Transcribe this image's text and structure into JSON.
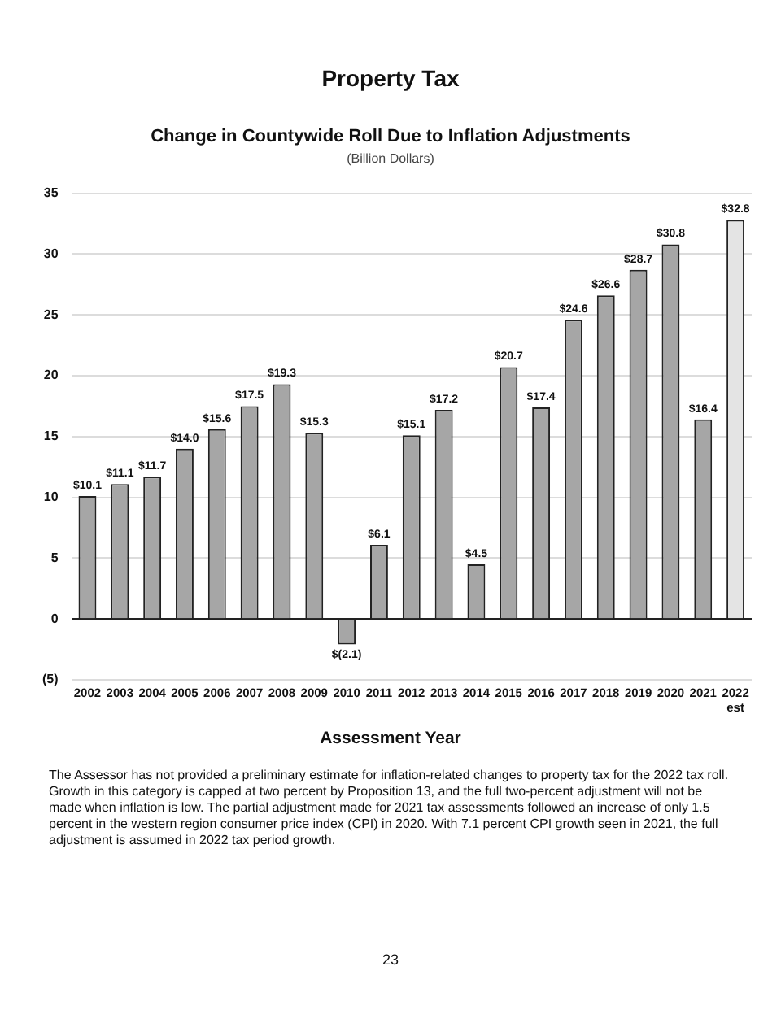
{
  "chart_data": {
    "type": "bar",
    "title": "Property Tax",
    "subtitle": "Change in Countywide Roll Due to Inflation Adjustments",
    "ylabel": "(Billion Dollars)",
    "xlabel": "Assessment Year",
    "categories": [
      "2002",
      "2003",
      "2004",
      "2005",
      "2006",
      "2007",
      "2008",
      "2009",
      "2010",
      "2011",
      "2012",
      "2013",
      "2014",
      "2015",
      "2016",
      "2017",
      "2018",
      "2019",
      "2020",
      "2021",
      "2022 est"
    ],
    "values": [
      10.1,
      11.1,
      11.7,
      14.0,
      15.6,
      17.5,
      19.3,
      15.3,
      -2.1,
      6.1,
      15.1,
      17.2,
      4.5,
      20.7,
      17.4,
      24.6,
      26.6,
      28.7,
      30.8,
      16.4,
      32.8
    ],
    "value_labels": [
      "$10.1",
      "$11.1",
      "$11.7",
      "$14.0",
      "$15.6",
      "$17.5",
      "$19.3",
      "$15.3",
      "$(2.1)",
      "$6.1",
      "$15.1",
      "$17.2",
      "$4.5",
      "$20.7",
      "$17.4",
      "$24.6",
      "$26.6",
      "$28.7",
      "$30.8",
      "$16.4",
      "$32.8"
    ],
    "colors": [
      "#a6a6a6",
      "#a6a6a6",
      "#a6a6a6",
      "#a6a6a6",
      "#a6a6a6",
      "#a6a6a6",
      "#a6a6a6",
      "#a6a6a6",
      "#a6a6a6",
      "#a6a6a6",
      "#a6a6a6",
      "#a6a6a6",
      "#a6a6a6",
      "#a6a6a6",
      "#a6a6a6",
      "#a6a6a6",
      "#a6a6a6",
      "#a6a6a6",
      "#a6a6a6",
      "#a6a6a6",
      "#e4e4e4"
    ],
    "ylim": [
      -5,
      35
    ],
    "yticks": [
      {
        "value": -5,
        "label": "(5)"
      },
      0,
      5,
      10,
      15,
      20,
      25,
      30,
      35
    ],
    "grid": "y",
    "legend": false,
    "annotations": [
      "The Assessor has not provided a preliminary estimate for inflation-related changes to property tax for the 2022 tax roll. Growth in this category is capped at two percent by Proposition 13, and the full two-percent adjustment will not be made when inflation is low. The partial adjustment made for 2021 tax assessments followed an increase of only 1.5 percent in the western region consumer price index (CPI) in 2020. With 7.1 percent CPI growth seen in 2021, the full adjustment is assumed in 2022 tax period growth.",
      "23"
    ]
  }
}
